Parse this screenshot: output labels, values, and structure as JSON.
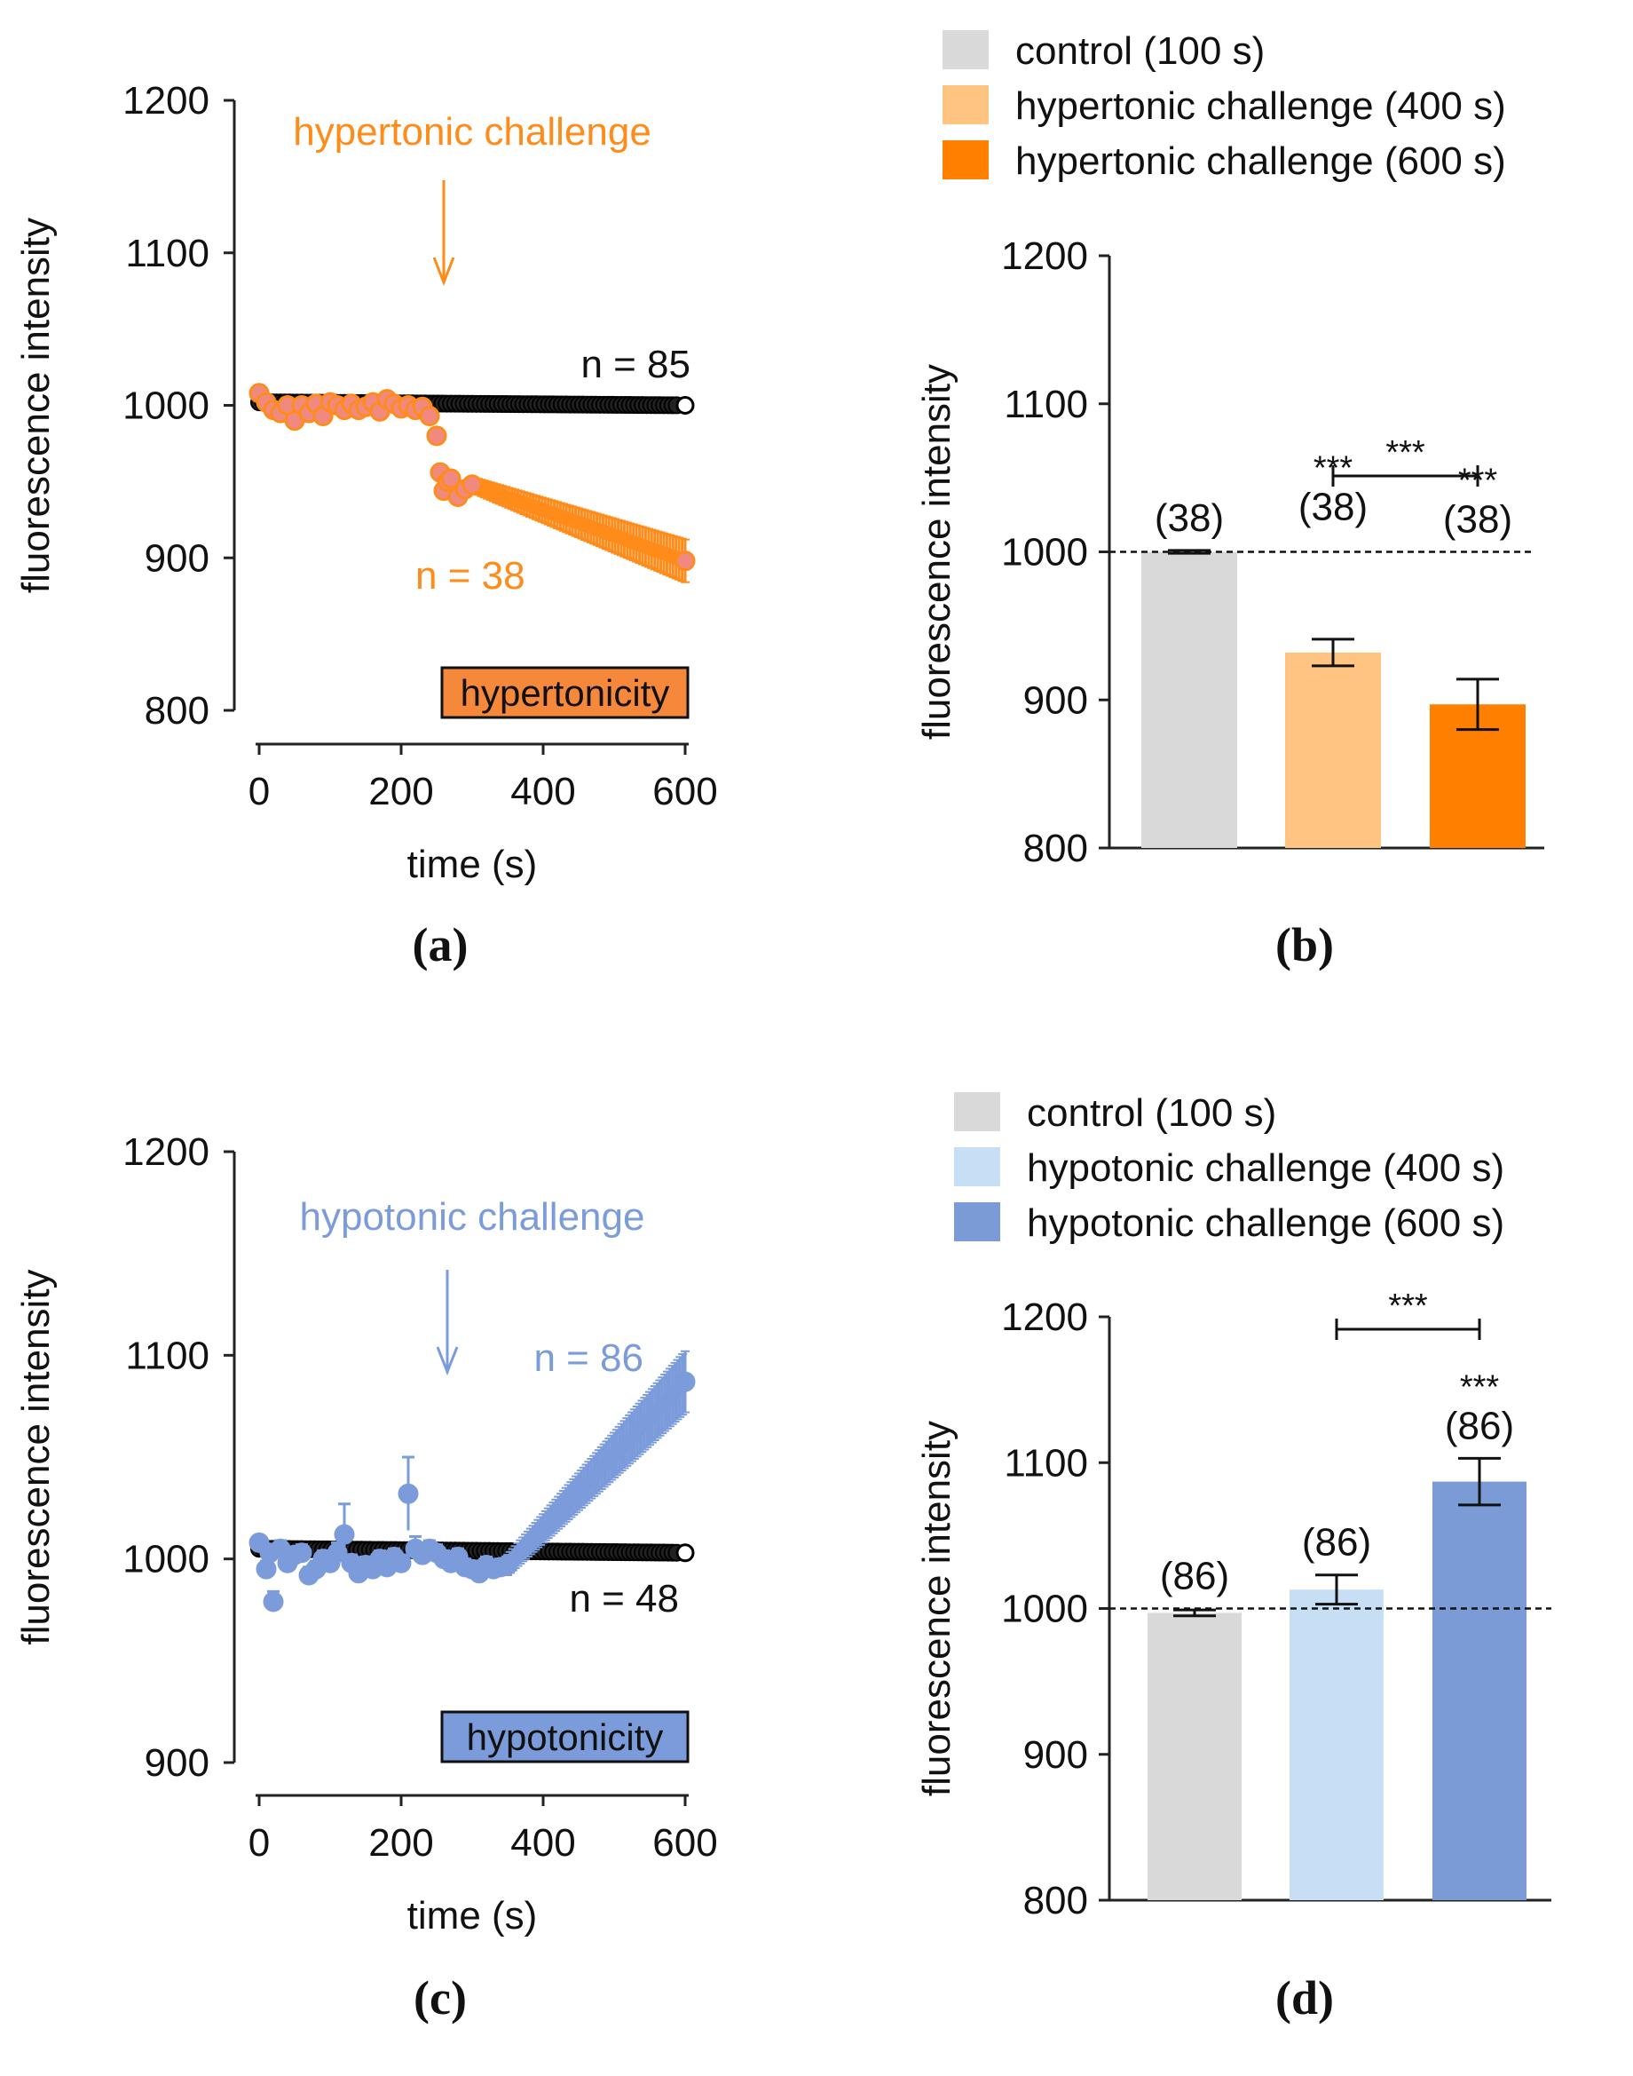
{
  "chart_data": [
    {
      "type": "scatter",
      "panel_label": "(a)",
      "xlabel": "time (s)",
      "ylabel": "fluorescence intensity",
      "xlim": [
        0,
        600
      ],
      "ylim": [
        800,
        1200
      ],
      "xticks": [
        0,
        200,
        400,
        600
      ],
      "yticks": [
        800,
        900,
        1000,
        1100,
        1200
      ],
      "annotation": "hypertonic challenge",
      "arrow_at_x": 260,
      "badge": "hypertonicity",
      "colors": {
        "treated": "#ff8c1a",
        "treated_marker_fill": "#f08a80",
        "control": "#111111",
        "badge_fill": "#f5883a",
        "annotation": "#ff8c1a"
      },
      "series": [
        {
          "name": "control",
          "n_label": "n = 85",
          "start_x": 0,
          "end_x": 600,
          "start_y": 1002,
          "end_y": 1000,
          "error": 2
        },
        {
          "name": "hypertonic challenge",
          "n_label": "n = 38",
          "x": [
            0,
            10,
            20,
            30,
            40,
            50,
            60,
            70,
            80,
            90,
            100,
            110,
            120,
            130,
            140,
            150,
            160,
            170,
            180,
            190,
            200,
            210,
            220,
            230,
            240,
            250,
            255,
            260,
            265,
            270,
            280,
            290,
            300
          ],
          "y": [
            1008,
            1002,
            997,
            995,
            1000,
            990,
            1000,
            995,
            1001,
            993,
            1002,
            1000,
            997,
            1001,
            997,
            999,
            1002,
            996,
            1004,
            1001,
            998,
            1000,
            997,
            999,
            993,
            980,
            956,
            944,
            950,
            952,
            940,
            945,
            948
          ],
          "trend_start": [
            300,
            948
          ],
          "trend_end": [
            600,
            898
          ],
          "trend_error_start": 5,
          "trend_error_end": 14
        }
      ]
    },
    {
      "type": "bar",
      "panel_label": "(b)",
      "ylabel": "fluorescence intensity",
      "ylim": [
        800,
        1200
      ],
      "yticks": [
        800,
        900,
        1000,
        1100,
        1200
      ],
      "reference_line": 1000,
      "categories": [
        "control (100 s)",
        "hypertonic challenge (400 s)",
        "hypertonic challenge (600 s)"
      ],
      "values": [
        1000,
        932,
        897
      ],
      "errors": [
        1,
        9,
        17
      ],
      "n_labels": [
        "(38)",
        "(38)",
        "(38)"
      ],
      "significance": [
        "",
        "***",
        "***"
      ],
      "bracket": {
        "from": 1,
        "to": 2,
        "label": "***"
      },
      "colors": [
        "#d9d9d9",
        "#ffc482",
        "#ff8000"
      ]
    },
    {
      "type": "scatter",
      "panel_label": "(c)",
      "xlabel": "time (s)",
      "ylabel": "fluorescence intensity",
      "xlim": [
        0,
        600
      ],
      "ylim": [
        900,
        1200
      ],
      "xticks": [
        0,
        200,
        400,
        600
      ],
      "yticks": [
        900,
        1000,
        1100,
        1200
      ],
      "annotation": "hypotonic challenge",
      "arrow_at_x": 265,
      "badge": "hypotonicity",
      "colors": {
        "treated": "#7b9bdb",
        "control": "#111111",
        "badge_fill": "#7b9bdb",
        "annotation": "#7b9bdb"
      },
      "series": [
        {
          "name": "control",
          "n_label": "n = 48",
          "start_x": 0,
          "end_x": 600,
          "start_y": 1005,
          "end_y": 1003,
          "error": 2
        },
        {
          "name": "hypotonic challenge",
          "n_label": "n = 86",
          "x": [
            0,
            10,
            15,
            20,
            30,
            40,
            50,
            60,
            70,
            80,
            90,
            100,
            110,
            120,
            130,
            140,
            150,
            160,
            170,
            180,
            190,
            200,
            210,
            220,
            230,
            240,
            250,
            260,
            270,
            280,
            290,
            300,
            310,
            320,
            330,
            340,
            350
          ],
          "y": [
            1008,
            995,
            1003,
            979,
            1005,
            998,
            1002,
            1003,
            992,
            995,
            1000,
            998,
            1003,
            1012,
            998,
            993,
            997,
            995,
            1000,
            996,
            1001,
            998,
            1032,
            1005,
            1002,
            1005,
            1003,
            1000,
            998,
            1001,
            996,
            995,
            993,
            997,
            995,
            996,
            997
          ],
          "errors": [
            3,
            4,
            4,
            5,
            4,
            4,
            4,
            4,
            4,
            4,
            4,
            4,
            5,
            15,
            4,
            4,
            4,
            4,
            4,
            4,
            4,
            4,
            18,
            6,
            4,
            4,
            4,
            4,
            4,
            4,
            4,
            4,
            4,
            4,
            4,
            4,
            4
          ],
          "trend_start": [
            350,
            997
          ],
          "trend_end": [
            600,
            1087
          ],
          "trend_error_start": 5,
          "trend_error_end": 15
        }
      ]
    },
    {
      "type": "bar",
      "panel_label": "(d)",
      "ylabel": "fluorescence intensity",
      "ylim": [
        800,
        1200
      ],
      "yticks": [
        800,
        900,
        1000,
        1100,
        1200
      ],
      "reference_line": 1000,
      "categories": [
        "control (100 s)",
        "hypotonic challenge (400 s)",
        "hypotonic challenge (600 s)"
      ],
      "values": [
        997,
        1013,
        1087
      ],
      "errors": [
        2,
        10,
        16
      ],
      "n_labels": [
        "(86)",
        "(86)",
        "(86)"
      ],
      "significance": [
        "",
        "",
        "***"
      ],
      "bracket": {
        "from": 1,
        "to": 2,
        "label": "***"
      },
      "colors": [
        "#d9d9d9",
        "#c7dff5",
        "#7b9bd6"
      ]
    }
  ]
}
